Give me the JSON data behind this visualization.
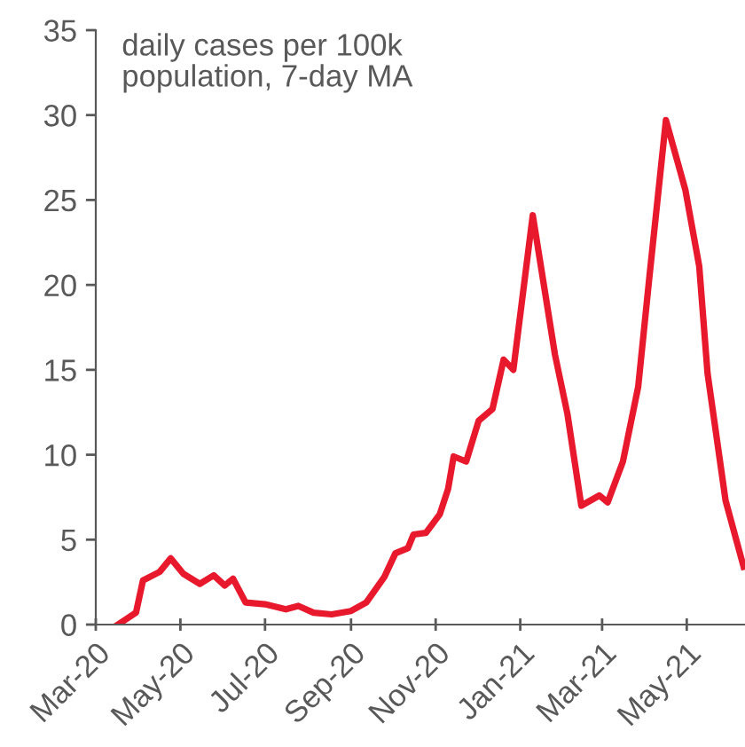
{
  "chart_data": {
    "type": "line",
    "title": "daily cases per 100k\npopulation, 7-day MA",
    "series": [
      {
        "color": "#e8192c",
        "x": [
          "2020-03-17",
          "2020-03-30",
          "2020-04-04",
          "2020-04-16",
          "2020-04-24",
          "2020-05-03",
          "2020-05-15",
          "2020-05-25",
          "2020-06-02",
          "2020-06-08",
          "2020-06-17",
          "2020-07-01",
          "2020-07-16",
          "2020-07-25",
          "2020-08-05",
          "2020-08-18",
          "2020-09-01",
          "2020-09-12",
          "2020-09-25",
          "2020-10-03",
          "2020-10-12",
          "2020-10-16",
          "2020-10-25",
          "2020-11-04",
          "2020-11-10",
          "2020-11-14",
          "2020-11-23",
          "2020-12-02",
          "2020-12-12",
          "2020-12-20",
          "2020-12-27",
          "2021-01-10",
          "2021-01-26",
          "2021-02-04",
          "2021-02-14",
          "2021-02-27",
          "2021-03-05",
          "2021-03-16",
          "2021-03-27",
          "2021-04-04",
          "2021-04-16",
          "2021-04-30",
          "2021-05-10",
          "2021-05-16",
          "2021-05-29",
          "2021-06-11"
        ],
        "values": [
          0,
          0.7,
          2.6,
          3.1,
          3.9,
          3.0,
          2.4,
          2.9,
          2.3,
          2.7,
          1.3,
          1.2,
          0.9,
          1.1,
          0.7,
          0.6,
          0.8,
          1.3,
          2.8,
          4.2,
          4.5,
          5.3,
          5.4,
          6.5,
          8.0,
          9.9,
          9.6,
          12,
          12.7,
          15.6,
          15.0,
          24.1,
          15.9,
          12.4,
          7,
          7.6,
          7.2,
          9.6,
          14,
          20.4,
          29.7,
          25.6,
          21.1,
          14.8,
          7.3,
          3.4
        ]
      }
    ],
    "xlim": [
      "2020-03-01",
      "2021-06-12"
    ],
    "xticks": [
      {
        "value": "2020-03-01",
        "label": "Mar-20"
      },
      {
        "value": "2020-05-01",
        "label": "May-20"
      },
      {
        "value": "2020-07-01",
        "label": "Jul-20"
      },
      {
        "value": "2020-09-01",
        "label": "Sep-20"
      },
      {
        "value": "2020-11-01",
        "label": "Nov-20"
      },
      {
        "value": "2021-01-01",
        "label": "Jan-21"
      },
      {
        "value": "2021-03-01",
        "label": "Mar-21"
      },
      {
        "value": "2021-05-01",
        "label": "May-21"
      }
    ],
    "ylim": [
      0,
      35
    ],
    "yticks": [
      0,
      5,
      10,
      15,
      20,
      25,
      30,
      35
    ],
    "grid": false,
    "legend": false,
    "marker": "none",
    "line_style": "solid"
  }
}
